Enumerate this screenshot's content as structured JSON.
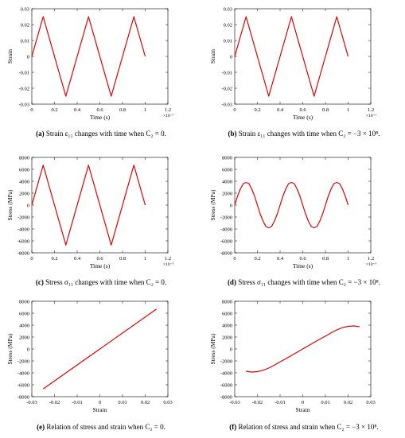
{
  "chart_data": [
    {
      "id": "a",
      "type": "line",
      "xlabel": "Time (s)",
      "ylabel": "Strain",
      "xlim": [
        0,
        1.2
      ],
      "ylim": [
        -0.03,
        0.03
      ],
      "xticks": [
        "0",
        "0.2",
        "0.4",
        "0.6",
        "0.8",
        "1",
        "1.2"
      ],
      "yticks": [
        "-0.03",
        "-0.02",
        "-0.01",
        "0",
        "0.01",
        "0.02",
        "0.03"
      ],
      "x_multiplier": "×10⁻⁵",
      "series": [
        {
          "color": "#e00000",
          "x": [
            0,
            0.1,
            0.3,
            0.5,
            0.7,
            0.9,
            1.0
          ],
          "y": [
            0,
            0.025,
            -0.025,
            0.025,
            -0.025,
            0.025,
            0
          ]
        }
      ],
      "caption": {
        "label": "(a)",
        "text": "Strain ε₁₁ changes with time when C₂ = 0."
      }
    },
    {
      "id": "b",
      "type": "line",
      "xlabel": "Time (s)",
      "ylabel": "Strain",
      "xlim": [
        0,
        1.2
      ],
      "ylim": [
        -0.03,
        0.03
      ],
      "xticks": [
        "0",
        "0.2",
        "0.4",
        "0.6",
        "0.8",
        "1",
        "1.2"
      ],
      "yticks": [
        "-0.03",
        "-0.02",
        "-0.01",
        "0",
        "0.01",
        "0.02",
        "0.03"
      ],
      "x_multiplier": "×10⁻⁵",
      "series": [
        {
          "color": "#e00000",
          "x": [
            0,
            0.1,
            0.3,
            0.5,
            0.7,
            0.9,
            1.0
          ],
          "y": [
            0,
            0.025,
            -0.025,
            0.025,
            -0.025,
            0.025,
            0
          ]
        }
      ],
      "caption": {
        "label": "(b)",
        "text": "Strain ε₁₁ changes with time when C₂ = −3 × 10⁸."
      }
    },
    {
      "id": "c",
      "type": "line",
      "xlabel": "Time (s)",
      "ylabel": "Stress (MPa)",
      "xlim": [
        0,
        1.2
      ],
      "ylim": [
        -8000,
        8000
      ],
      "xticks": [
        "0",
        "0.2",
        "0.4",
        "0.6",
        "0.8",
        "1",
        "1.2"
      ],
      "yticks": [
        "-8000",
        "-6000",
        "-4000",
        "-2000",
        "0",
        "2000",
        "4000",
        "6000",
        "8000"
      ],
      "x_multiplier": "×10⁻⁵",
      "series": [
        {
          "color": "#e00000",
          "x": [
            0,
            0.1,
            0.3,
            0.5,
            0.7,
            0.9,
            1.0
          ],
          "y": [
            0,
            6700,
            -6700,
            6700,
            -6700,
            6700,
            0
          ]
        }
      ],
      "caption": {
        "label": "(c)",
        "text": "Stress σ₁₁ changes with time when C₂ = 0."
      }
    },
    {
      "id": "d",
      "type": "line",
      "xlabel": "Time (s)",
      "ylabel": "Stress (MPa)",
      "xlim": [
        0,
        1.2
      ],
      "ylim": [
        -8000,
        8000
      ],
      "xticks": [
        "0",
        "0.2",
        "0.4",
        "0.6",
        "0.8",
        "1",
        "1.2"
      ],
      "yticks": [
        "-8000",
        "-6000",
        "-4000",
        "-2000",
        "0",
        "2000",
        "4000",
        "6000",
        "8000"
      ],
      "x_multiplier": "×10⁻⁵",
      "series": [
        {
          "color": "#e00000",
          "x": [
            0,
            0.025,
            0.05,
            0.075,
            0.1,
            0.125,
            0.15,
            0.175,
            0.2,
            0.225,
            0.25,
            0.275,
            0.3,
            0.325,
            0.35,
            0.375,
            0.4,
            0.425,
            0.45,
            0.475,
            0.5,
            0.525,
            0.55,
            0.575,
            0.6,
            0.625,
            0.65,
            0.675,
            0.7,
            0.725,
            0.75,
            0.775,
            0.8,
            0.825,
            0.85,
            0.875,
            0.9,
            0.925,
            0.95,
            0.975,
            1.0
          ],
          "y": [
            0,
            1500,
            2700,
            3600,
            3800,
            3600,
            2700,
            1500,
            0,
            -1500,
            -2700,
            -3600,
            -3800,
            -3600,
            -2700,
            -1500,
            0,
            1500,
            2700,
            3600,
            3800,
            3600,
            2700,
            1500,
            0,
            -1500,
            -2700,
            -3600,
            -3800,
            -3600,
            -2700,
            -1500,
            0,
            1500,
            2700,
            3600,
            3800,
            3600,
            2700,
            1500,
            0
          ]
        }
      ],
      "caption": {
        "label": "(d)",
        "text": "Stress σ₁₁ changes with time when C₂ = −3 × 10⁸."
      }
    },
    {
      "id": "e",
      "type": "line",
      "xlabel": "Strain",
      "ylabel": "Stress (MPa)",
      "xlim": [
        -0.03,
        0.03
      ],
      "ylim": [
        -8000,
        8000
      ],
      "xticks": [
        "-0.03",
        "-0.02",
        "-0.01",
        "0",
        "0.01",
        "0.02",
        "0.03"
      ],
      "yticks": [
        "-8000",
        "-6000",
        "-4000",
        "-2000",
        "0",
        "2000",
        "4000",
        "6000",
        "8000"
      ],
      "series": [
        {
          "color": "#e00000",
          "x": [
            -0.025,
            0.025
          ],
          "y": [
            -6700,
            6700
          ]
        }
      ],
      "caption": {
        "label": "(e)",
        "text": "Relation of stress and strain when C₂ = 0."
      }
    },
    {
      "id": "f",
      "type": "line",
      "xlabel": "Strain",
      "ylabel": "Stress (MPa)",
      "xlim": [
        -0.03,
        0.03
      ],
      "ylim": [
        -8000,
        8000
      ],
      "xticks": [
        "-0.03",
        "-0.02",
        "-0.01",
        "0",
        "0.01",
        "0.02",
        "0.03"
      ],
      "yticks": [
        "-8000",
        "-6000",
        "-4000",
        "-2000",
        "0",
        "2000",
        "4000",
        "6000",
        "8000"
      ],
      "series": [
        {
          "color": "#e00000",
          "x": [
            -0.025,
            -0.0225,
            -0.02,
            -0.0175,
            -0.015,
            -0.0125,
            -0.01,
            -0.0075,
            -0.005,
            -0.0025,
            0,
            0.0025,
            0.005,
            0.0075,
            0.01,
            0.0125,
            0.015,
            0.0175,
            0.02,
            0.0225,
            0.025
          ],
          "y": [
            -3750,
            -3870,
            -3800,
            -3580,
            -3200,
            -2700,
            -2150,
            -1650,
            -1100,
            -550,
            0,
            550,
            1100,
            1650,
            2150,
            2700,
            3200,
            3580,
            3800,
            3870,
            3750
          ]
        }
      ],
      "caption": {
        "label": "(f)",
        "text": "Relation of stress and strain when C₂ = −3 × 10⁸."
      }
    }
  ]
}
